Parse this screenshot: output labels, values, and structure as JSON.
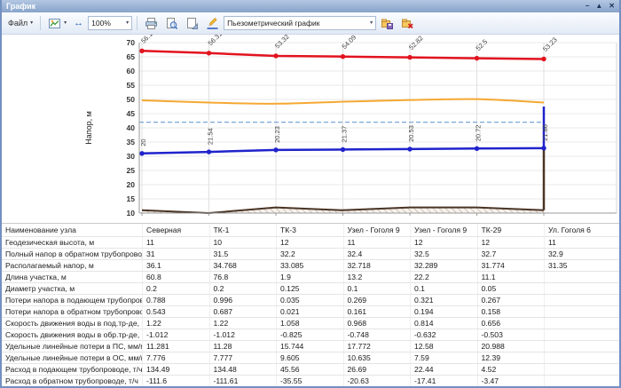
{
  "window": {
    "title": "График",
    "controls": {
      "minimize": "–",
      "maximize": "▲",
      "close": "✕"
    }
  },
  "glyphs": {
    "dropdown": "▾",
    "fit_width": "↔"
  },
  "toolbar": {
    "file_label": "Файл",
    "zoom_value": "100%",
    "template_value": "Пьезометрический график"
  },
  "chart_data": {
    "type": "line",
    "ylabel": "Напор, м",
    "ylim": [
      10,
      70
    ],
    "yticks": [
      10,
      15,
      20,
      25,
      30,
      35,
      40,
      45,
      50,
      55,
      60,
      65,
      70
    ],
    "x_nodes": [
      "Северная",
      "ТК-1",
      "ТК-3",
      "Узел - Гоголя 9",
      "Узел - Гоголя 9",
      "ТК-29",
      "Ул. Гоголя 6"
    ],
    "series": [
      {
        "name": "supply-head-line",
        "color": "#e2131f",
        "values": [
          67.1,
          66.31,
          65.32,
          65.09,
          64.82,
          64.5,
          64.23
        ],
        "labels": [
          "56.1",
          "56.31",
          "53.32",
          "54.09",
          "52.82",
          "52.5",
          "53.23"
        ],
        "label_angle": -45
      },
      {
        "name": "return-head-line",
        "color": "#2023cc",
        "values": [
          31,
          31.54,
          32.23,
          32.37,
          32.53,
          32.72,
          32.86
        ],
        "labels": [
          "20",
          "21.54",
          "20.23",
          "21.37",
          "20.53",
          "20.72",
          "21.86"
        ],
        "label_angle": -90
      },
      {
        "name": "required-head-line",
        "color": "#f5a832",
        "values": [
          49.7,
          48.9,
          48.5,
          49.2,
          49.8,
          50.1,
          48.9
        ]
      },
      {
        "name": "static-head-line",
        "color": "#78a8d8",
        "style": "dashed",
        "value": 42
      }
    ],
    "terrain": {
      "name": "ground-profile",
      "color": "#4a3424",
      "hatch_color": "#b7a494",
      "values": [
        11,
        10,
        12,
        11,
        12,
        12,
        11
      ],
      "base": 10
    },
    "consumer_riser": {
      "from": 32.86,
      "to": 47.5
    }
  },
  "table": {
    "header_label": "Наименование узла",
    "columns": [
      "Северная",
      "ТК-1",
      "ТК-3",
      "Узел - Гоголя 9",
      "Узел - Гоголя 9",
      "ТК-29",
      "Ул. Гоголя 6"
    ],
    "rows": [
      {
        "label": "Геодезическая высота, м",
        "values": [
          "11",
          "10",
          "12",
          "11",
          "12",
          "12",
          "11"
        ]
      },
      {
        "label": "Полный напор в обратном трубопроводе, м",
        "values": [
          "31",
          "31.5",
          "32.2",
          "32.4",
          "32.5",
          "32.7",
          "32.9"
        ]
      },
      {
        "label": "Располагаемый напор, м",
        "values": [
          "36.1",
          "34.768",
          "33.085",
          "32.718",
          "32.289",
          "31.774",
          "31.35"
        ]
      },
      {
        "label": "Длина участка, м",
        "values": [
          "60.8",
          "76.8",
          "1.9",
          "13.2",
          "22.2",
          "11.1",
          ""
        ]
      },
      {
        "label": "Диаметр участка, м",
        "values": [
          "0.2",
          "0.2",
          "0.125",
          "0.1",
          "0.1",
          "0.05",
          ""
        ]
      },
      {
        "label": "Потери напора в подающем трубопроводе, м",
        "values": [
          "0.788",
          "0.996",
          "0.035",
          "0.269",
          "0.321",
          "0.267",
          ""
        ]
      },
      {
        "label": "Потери напора в обратном трубопроводе, м",
        "values": [
          "0.543",
          "0.687",
          "0.021",
          "0.161",
          "0.194",
          "0.158",
          ""
        ]
      },
      {
        "label": "Скорость движения воды в под.тр-де, м/с",
        "values": [
          "1.22",
          "1.22",
          "1.058",
          "0.968",
          "0.814",
          "0.656",
          ""
        ]
      },
      {
        "label": "Скорость движения воды в обр.тр-де, м/с",
        "values": [
          "-1.012",
          "-1.012",
          "-0.825",
          "-0.748",
          "-0.632",
          "-0.503",
          ""
        ]
      },
      {
        "label": "Удельные линейные потери в ПС, мм/м",
        "values": [
          "11.281",
          "11.28",
          "15.744",
          "17.772",
          "12.58",
          "20.988",
          ""
        ]
      },
      {
        "label": "Удельные линейные потери в ОС, мм/м",
        "values": [
          "7.776",
          "7.777",
          "9.605",
          "10.635",
          "7.59",
          "12.39",
          ""
        ]
      },
      {
        "label": "Расход в подающем трубопроводе, т/ч",
        "values": [
          "134.49",
          "134.48",
          "45.56",
          "26.69",
          "22.44",
          "4.52",
          ""
        ]
      },
      {
        "label": "Расход в обратном трубопроводе, т/ч",
        "values": [
          "-111.6",
          "-111.61",
          "-35.55",
          "-20.63",
          "-17.41",
          "-3.47",
          ""
        ]
      }
    ]
  }
}
